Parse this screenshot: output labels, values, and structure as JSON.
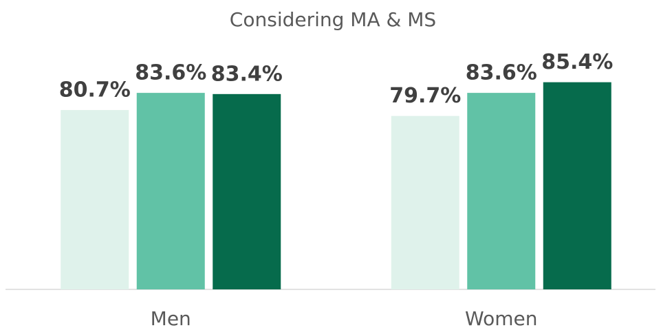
{
  "chart_data": {
    "type": "bar",
    "title": "Considering MA & MS",
    "categories": [
      "Men",
      "Women"
    ],
    "series": [
      {
        "color": "#dff2eb",
        "values": [
          80.7,
          79.7
        ],
        "value_labels": [
          "80.7%",
          "79.7%"
        ]
      },
      {
        "color": "#61c2a6",
        "values": [
          83.6,
          83.6
        ],
        "value_labels": [
          "83.6%",
          "83.6%"
        ]
      },
      {
        "color": "#066b4c",
        "values": [
          83.4,
          85.4
        ],
        "value_labels": [
          "83.4%",
          "85.4%"
        ]
      }
    ],
    "ylim": [
      50.4,
      90
    ]
  }
}
